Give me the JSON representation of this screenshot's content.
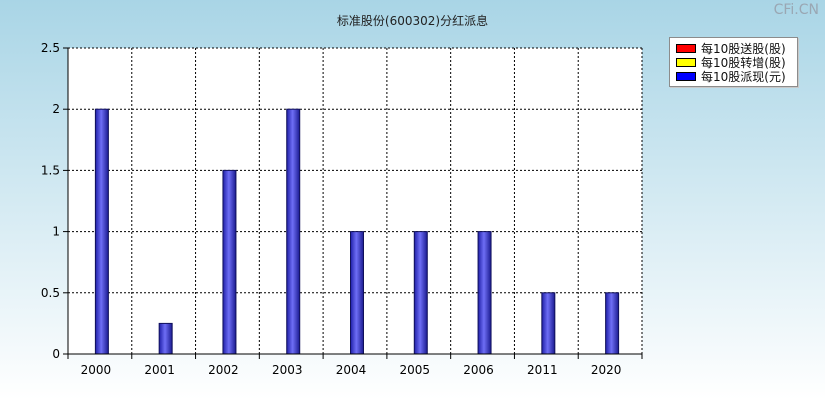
{
  "watermark": "CFi.CN",
  "chart_data": {
    "type": "bar",
    "title": "标准股份(600302)分红派息",
    "xlabel": "",
    "ylabel": "",
    "categories": [
      "2000",
      "2001",
      "2002",
      "2003",
      "2004",
      "2005",
      "2006",
      "2011",
      "2020"
    ],
    "ylim": [
      0,
      2.5
    ],
    "yticks": [
      {
        "value": 0,
        "label": "0"
      },
      {
        "value": 0.5,
        "label": "0.5"
      },
      {
        "value": 1,
        "label": "1"
      },
      {
        "value": 1.5,
        "label": "1.5"
      },
      {
        "value": 2,
        "label": "2"
      },
      {
        "value": 2.5,
        "label": "2.5"
      }
    ],
    "grid": true,
    "legend_position": "top-right",
    "series": [
      {
        "name": "每10股送股(股)",
        "color": "#ff0000",
        "values": [
          0,
          0,
          0,
          0,
          0,
          0,
          0,
          0,
          0
        ]
      },
      {
        "name": "每10股转增(股)",
        "color": "#ffff00",
        "values": [
          0,
          0,
          0,
          0,
          0,
          0,
          0,
          0,
          0
        ]
      },
      {
        "name": "每10股派现(元)",
        "color": "#0000ff",
        "values": [
          2,
          0.25,
          1.5,
          2,
          1,
          1,
          1,
          0.5,
          0.5
        ]
      }
    ]
  }
}
